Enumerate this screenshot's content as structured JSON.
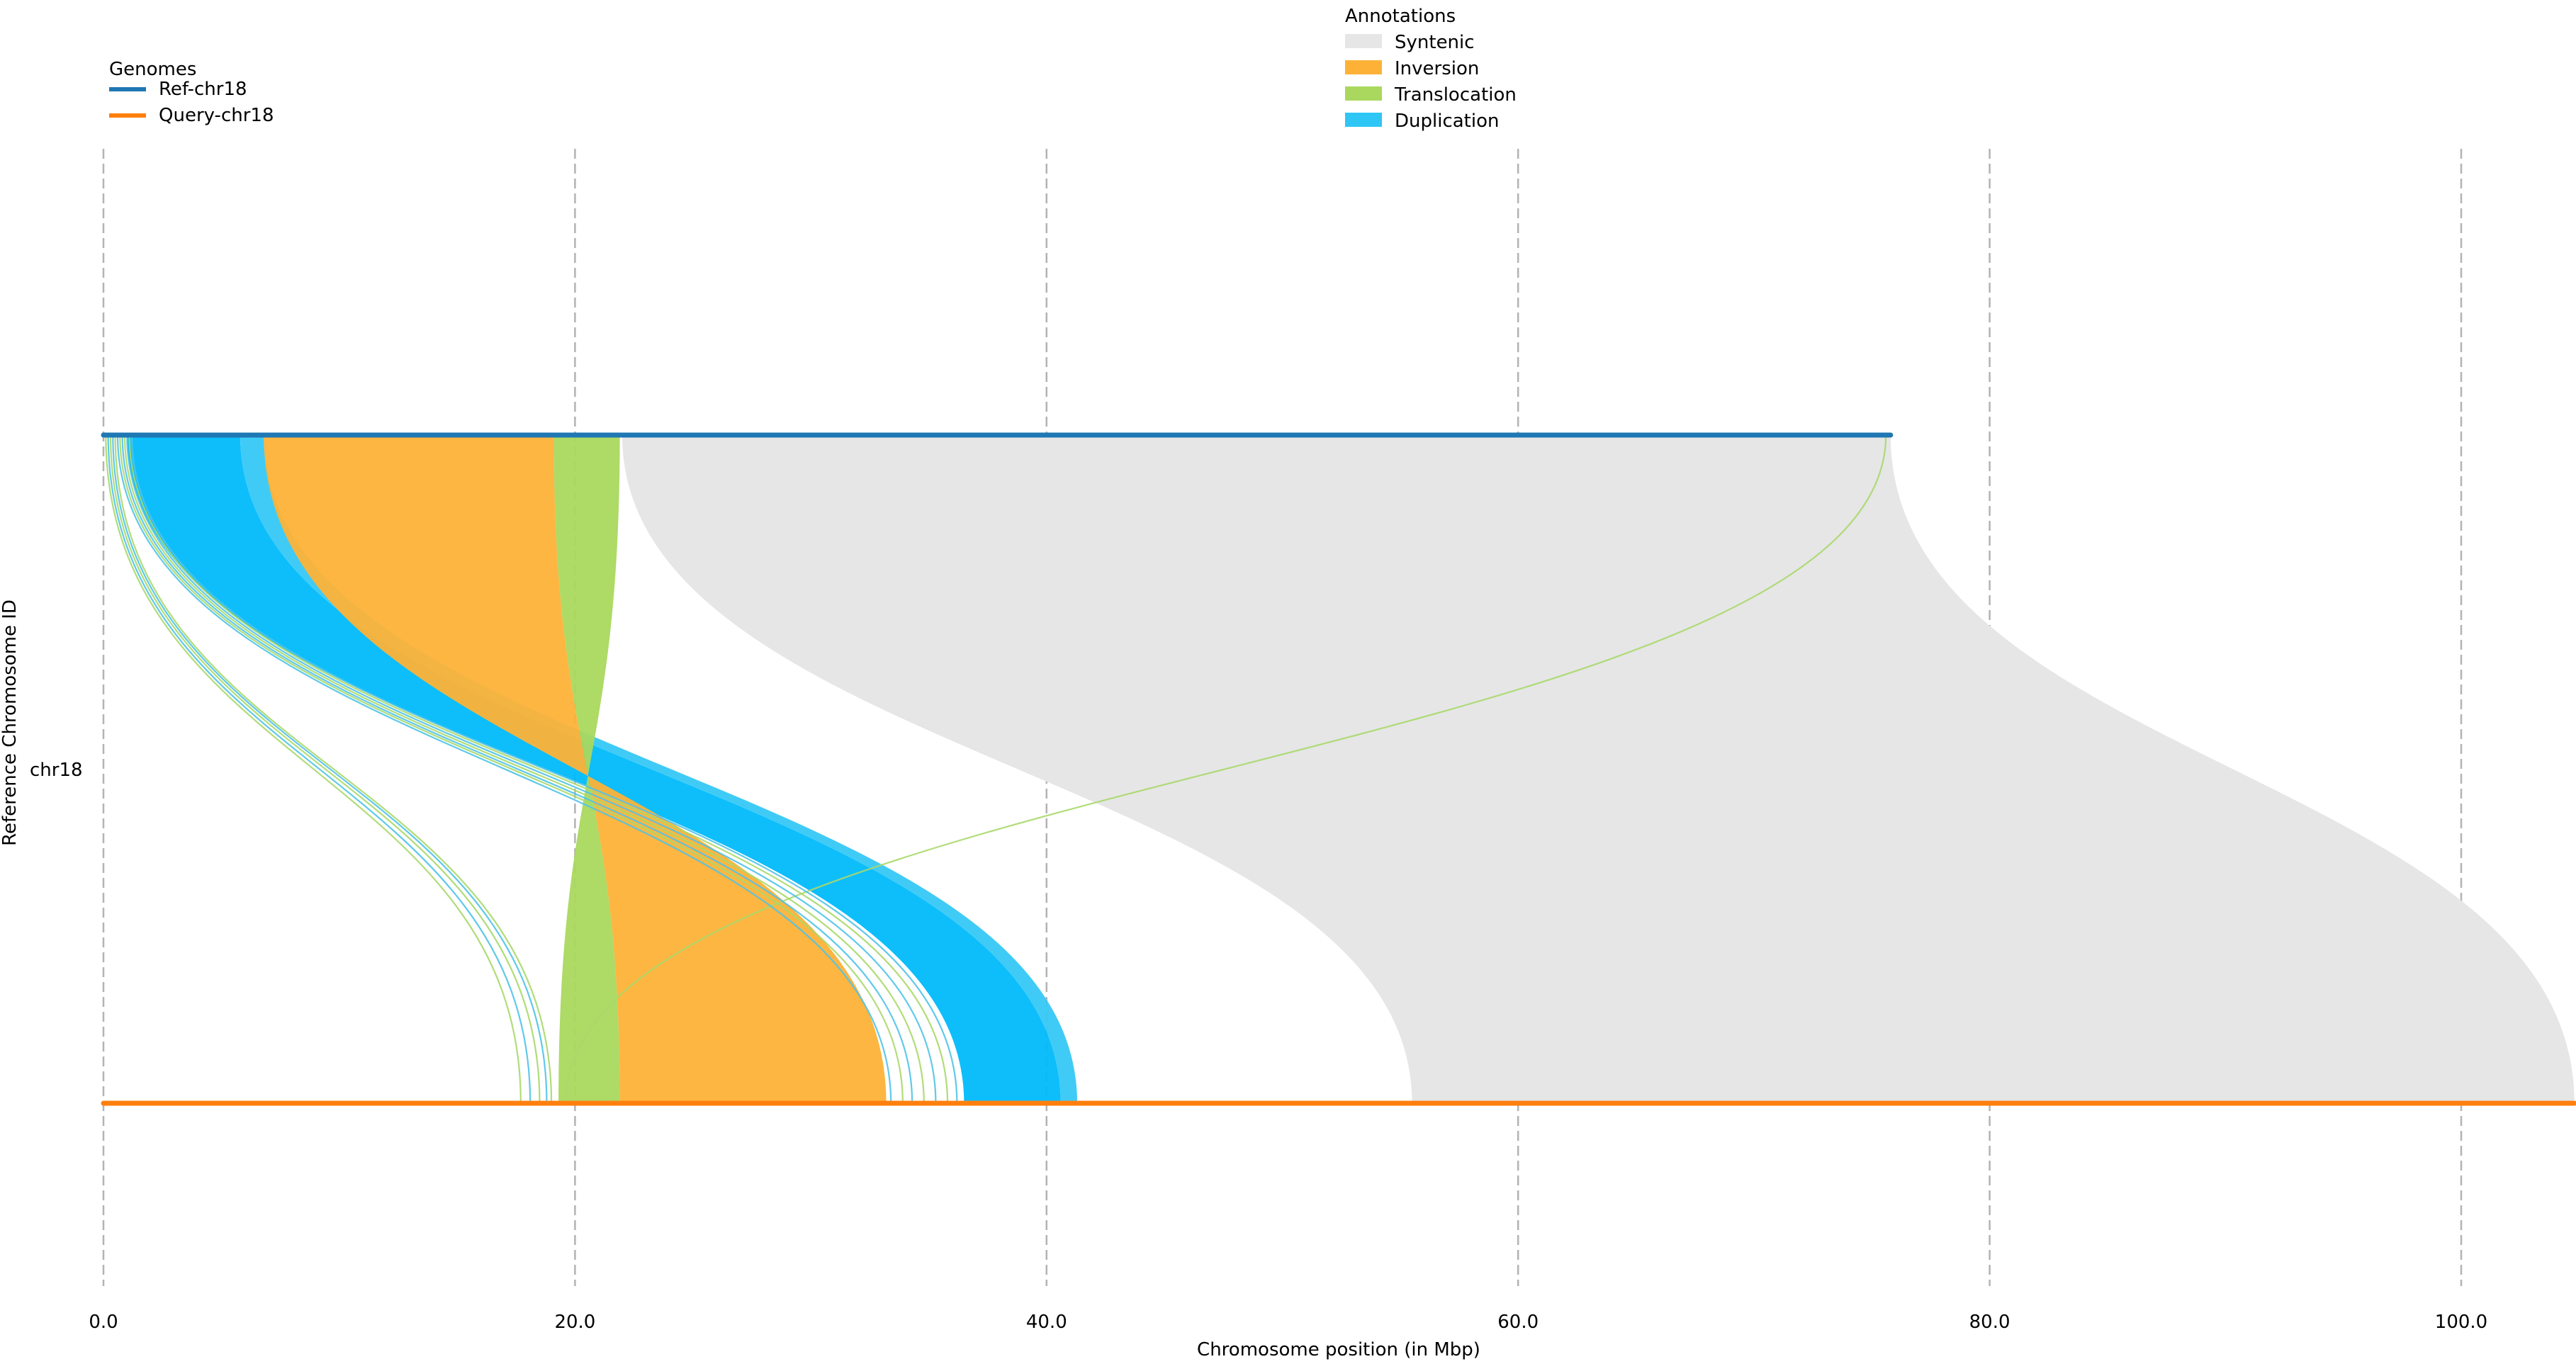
{
  "chart_data": {
    "type": "synteny_ribbon",
    "xlabel": "Chromosome position (in Mbp)",
    "ylabel": "Reference Chromosome ID",
    "chromosome_label": "chr18",
    "xlim": [
      0,
      104.8
    ],
    "xticks": [
      0,
      20,
      40,
      60,
      80,
      100
    ],
    "xtick_labels": [
      "0.0",
      "20.0",
      "40.0",
      "60.0",
      "80.0",
      "100.0"
    ],
    "grid": "vertical dashed at ticks",
    "genomes_legend": {
      "title": "Genomes",
      "placement": "top-left",
      "entries": [
        {
          "name": "Ref-chr18",
          "color": "#1f77b4",
          "length_mbp": 75.8
        },
        {
          "name": "Query-chr18",
          "color": "#ff7f0e",
          "length_mbp": 104.8
        }
      ]
    },
    "annotations_legend": {
      "title": "Annotations",
      "placement": "top-center",
      "entries": [
        {
          "name": "Syntenic",
          "color": "#e6e6e6"
        },
        {
          "name": "Inversion",
          "color": "#fdb237"
        },
        {
          "name": "Translocation",
          "color": "#aad85e"
        },
        {
          "name": "Duplication",
          "color": "#2ec6f5"
        }
      ]
    },
    "ribbons": [
      {
        "type": "Syntenic",
        "color": "#e6e6e6",
        "ref": [
          22.0,
          75.8
        ],
        "query": [
          55.5,
          104.8
        ],
        "inverted": false
      },
      {
        "type": "Duplication",
        "color": "#00bbfb",
        "ref": [
          1.0,
          5.8
        ],
        "query": [
          36.5,
          40.6
        ],
        "inverted": false
      },
      {
        "type": "Duplication",
        "color": "#36c8f6",
        "ref": [
          5.8,
          6.8
        ],
        "query": [
          40.6,
          41.3
        ],
        "inverted": false
      },
      {
        "type": "Inversion",
        "color": "#fdb237",
        "ref": [
          6.8,
          19.1
        ],
        "query": [
          21.9,
          33.2
        ],
        "inverted": true
      },
      {
        "type": "Translocation",
        "color": "#aad85e",
        "ref": [
          19.1,
          21.9
        ],
        "query": [
          19.3,
          21.9
        ],
        "inverted": true
      }
    ],
    "links": [
      {
        "type": "Translocation",
        "color": "#a8d86a",
        "ref": 75.6,
        "query": 19.6
      },
      {
        "type": "Translocation",
        "color": "#a8d86a",
        "ref": 0.1,
        "query": 17.7
      },
      {
        "type": "Duplication",
        "color": "#4fc3e8",
        "ref": 0.2,
        "query": 18.1
      },
      {
        "type": "Translocation",
        "color": "#a8d86a",
        "ref": 0.3,
        "query": 18.5
      },
      {
        "type": "Duplication",
        "color": "#4fc3e8",
        "ref": 0.4,
        "query": 18.8
      },
      {
        "type": "Translocation",
        "color": "#a8d86a",
        "ref": 0.5,
        "query": 19.0
      },
      {
        "type": "Duplication",
        "color": "#4fc3e8",
        "ref": 0.6,
        "query": 33.4
      },
      {
        "type": "Translocation",
        "color": "#a8d86a",
        "ref": 0.7,
        "query": 33.9
      },
      {
        "type": "Duplication",
        "color": "#4fc3e8",
        "ref": 0.8,
        "query": 34.3
      },
      {
        "type": "Translocation",
        "color": "#a8d86a",
        "ref": 0.9,
        "query": 34.8
      },
      {
        "type": "Duplication",
        "color": "#4fc3e8",
        "ref": 1.0,
        "query": 35.3
      },
      {
        "type": "Translocation",
        "color": "#a8d86a",
        "ref": 1.1,
        "query": 35.8
      },
      {
        "type": "Duplication",
        "color": "#4fc3e8",
        "ref": 1.2,
        "query": 36.2
      }
    ]
  }
}
